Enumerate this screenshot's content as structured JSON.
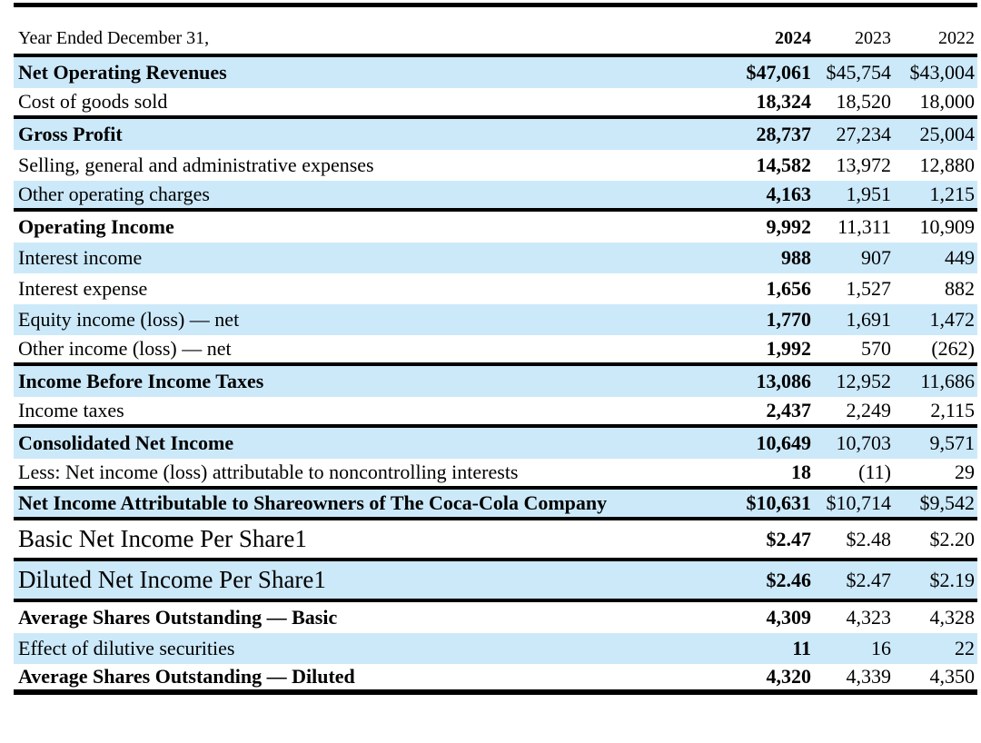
{
  "table": {
    "header": {
      "label": "Year Ended December 31,",
      "years": [
        "2024",
        "2023",
        "2022"
      ]
    },
    "colors": {
      "row_highlight": "#cce9fa",
      "rule": "#000000"
    },
    "rows": [
      {
        "label": "Net Operating Revenues",
        "v2024": "$47,061",
        "v2023": "$45,754",
        "v2022": "$43,004"
      },
      {
        "label": "Cost of goods sold",
        "v2024": "18,324",
        "v2023": "18,520",
        "v2022": "18,000"
      },
      {
        "label": "Gross Profit",
        "v2024": "28,737",
        "v2023": "27,234",
        "v2022": "25,004"
      },
      {
        "label": "Selling, general and administrative expenses",
        "v2024": "14,582",
        "v2023": "13,972",
        "v2022": "12,880"
      },
      {
        "label": "Other operating charges",
        "v2024": "4,163",
        "v2023": "1,951",
        "v2022": "1,215"
      },
      {
        "label": "Operating Income",
        "v2024": "9,992",
        "v2023": "11,311",
        "v2022": "10,909"
      },
      {
        "label": "Interest income",
        "v2024": "988",
        "v2023": "907",
        "v2022": "449"
      },
      {
        "label": "Interest expense",
        "v2024": "1,656",
        "v2023": "1,527",
        "v2022": "882"
      },
      {
        "label": "Equity income (loss) — net",
        "v2024": "1,770",
        "v2023": "1,691",
        "v2022": "1,472"
      },
      {
        "label": "Other income (loss) — net",
        "v2024": "1,992",
        "v2023": "570",
        "v2022": "(262)"
      },
      {
        "label": "Income Before Income Taxes",
        "v2024": "13,086",
        "v2023": "12,952",
        "v2022": "11,686"
      },
      {
        "label": "Income taxes",
        "v2024": "2,437",
        "v2023": "2,249",
        "v2022": "2,115"
      },
      {
        "label": "Consolidated Net Income",
        "v2024": "10,649",
        "v2023": "10,703",
        "v2022": "9,571"
      },
      {
        "label": "Less: Net income (loss) attributable to noncontrolling interests",
        "v2024": "18",
        "v2023": "(11)",
        "v2022": "29"
      },
      {
        "label": "Net Income Attributable to Shareowners of The Coca-Cola Company",
        "v2024": "$10,631",
        "v2023": "$10,714",
        "v2022": "$9,542"
      },
      {
        "label": "Basic Net Income Per Share1",
        "v2024": "$2.47",
        "v2023": "$2.48",
        "v2022": "$2.20"
      },
      {
        "label": "Diluted Net Income Per Share1",
        "v2024": "$2.46",
        "v2023": "$2.47",
        "v2022": "$2.19"
      },
      {
        "label": "Average Shares Outstanding — Basic",
        "v2024": "4,309",
        "v2023": "4,323",
        "v2022": "4,328"
      },
      {
        "label": "Effect of dilutive securities",
        "v2024": "11",
        "v2023": "16",
        "v2022": "22"
      },
      {
        "label": "Average Shares Outstanding — Diluted",
        "v2024": "4,320",
        "v2023": "4,339",
        "v2022": "4,350"
      }
    ]
  }
}
